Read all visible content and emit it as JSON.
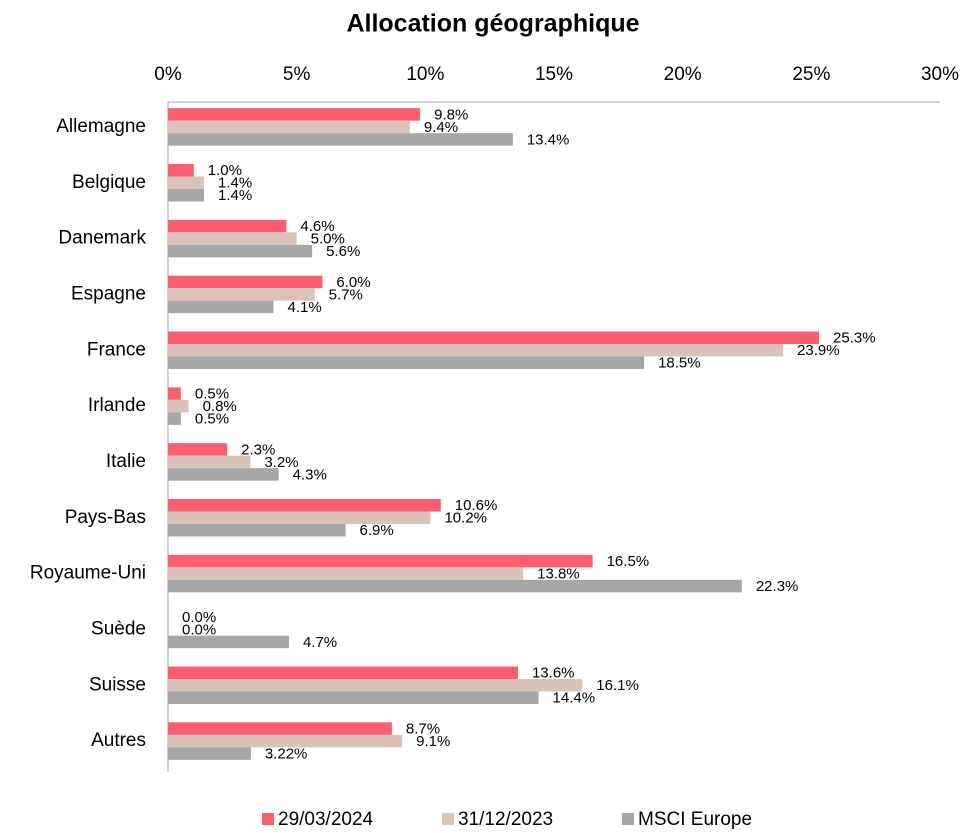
{
  "chart_data": {
    "type": "barh",
    "title": "Allocation géographique",
    "categories": [
      "Allemagne",
      "Belgique",
      "Danemark",
      "Espagne",
      "France",
      "Irlande",
      "Italie",
      "Pays-Bas",
      "Royaume-Uni",
      "Suède",
      "Suisse",
      "Autres"
    ],
    "series": [
      {
        "name": "29/03/2024",
        "color": "#fb5e6e",
        "label_color": "#404040",
        "values": [
          9.8,
          1.0,
          4.6,
          6.0,
          25.3,
          0.5,
          2.3,
          10.6,
          16.5,
          0.0,
          13.6,
          8.7
        ],
        "value_labels": [
          "9.8%",
          "1.0%",
          "4.6%",
          "6.0%",
          "25.3%",
          "0.5%",
          "2.3%",
          "10.6%",
          "16.5%",
          "0.0%",
          "13.6%",
          "8.7%"
        ]
      },
      {
        "name": "31/12/2023",
        "color": "#d9c3b9",
        "label_color": "#000000",
        "values": [
          9.4,
          1.4,
          5.0,
          5.7,
          23.9,
          0.8,
          3.2,
          10.2,
          13.8,
          0.0,
          16.1,
          9.1
        ],
        "value_labels": [
          "9.4%",
          "1.4%",
          "5.0%",
          "5.7%",
          "23.9%",
          "0.8%",
          "3.2%",
          "10.2%",
          "13.8%",
          "0.0%",
          "16.1%",
          "9.1%"
        ]
      },
      {
        "name": "MSCI Europe",
        "color": "#a6a6a6",
        "label_color": "#404040",
        "values": [
          13.4,
          1.4,
          5.6,
          4.1,
          18.5,
          0.5,
          4.3,
          6.9,
          22.3,
          4.7,
          14.4,
          3.22
        ],
        "value_labels": [
          "13.4%",
          "1.4%",
          "5.6%",
          "4.1%",
          "18.5%",
          "0.5%",
          "4.3%",
          "6.9%",
          "22.3%",
          "4.7%",
          "14.4%",
          "3.22%"
        ]
      }
    ],
    "xlim": [
      0,
      30
    ],
    "xticks": [
      {
        "value": 0,
        "label": "0%"
      },
      {
        "value": 5,
        "label": "5%"
      },
      {
        "value": 10,
        "label": "10%"
      },
      {
        "value": 15,
        "label": "15%"
      },
      {
        "value": 20,
        "label": "20%"
      },
      {
        "value": 25,
        "label": "25%"
      },
      {
        "value": 30,
        "label": "30%"
      }
    ],
    "legend": "bottom"
  }
}
